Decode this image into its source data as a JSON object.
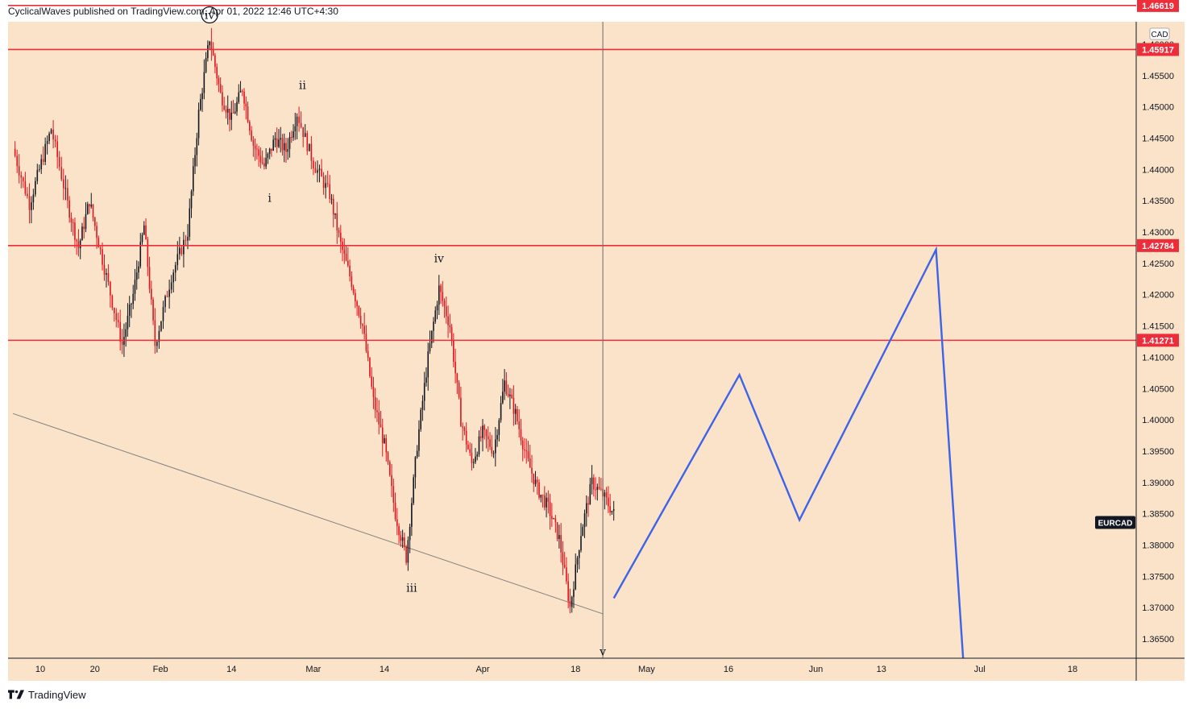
{
  "header": {
    "published": "CyclicalWaves published on TradingView.com, Apr 01, 2022 12:46 UTC+4:30"
  },
  "footer": {
    "brand": "TradingView",
    "logo_icon": "tradingview-logo-icon"
  },
  "chart_data": {
    "type": "candlestick",
    "symbol": "EURCAD",
    "currency": "CAD",
    "colors": {
      "background": "#fae3c8",
      "up": "#131722",
      "down": "#e0141e",
      "level": "#ee2d3b",
      "projection": "#3d63e8",
      "trendline": "#7f7f7f"
    },
    "y_axis": {
      "range": [
        1.3615,
        1.466
      ],
      "ticks": [
        "1.36500",
        "1.37000",
        "1.37500",
        "1.38000",
        "1.38500",
        "1.39000",
        "1.39500",
        "1.40000",
        "1.40500",
        "1.41000",
        "1.41500",
        "1.42000",
        "1.42500",
        "1.43000",
        "1.43500",
        "1.44000",
        "1.44500",
        "1.45000",
        "1.45500",
        "1.46000",
        "1.46500"
      ]
    },
    "x_axis": {
      "ticks": [
        {
          "label": "10",
          "date": "2022-01-10"
        },
        {
          "label": "20",
          "date": "2022-01-20"
        },
        {
          "label": "Feb",
          "date": "2022-02-01"
        },
        {
          "label": "14",
          "date": "2022-02-14"
        },
        {
          "label": "Mar",
          "date": "2022-03-01"
        },
        {
          "label": "14",
          "date": "2022-03-14"
        },
        {
          "label": "Apr",
          "date": "2022-04-01"
        },
        {
          "label": "18",
          "date": "2022-04-18"
        },
        {
          "label": "May",
          "date": "2022-05-01"
        },
        {
          "label": "16",
          "date": "2022-05-16"
        },
        {
          "label": "Jun",
          "date": "2022-06-01"
        },
        {
          "label": "13",
          "date": "2022-06-13"
        },
        {
          "label": "Jul",
          "date": "2022-07-01"
        },
        {
          "label": "18",
          "date": "2022-07-18"
        }
      ]
    },
    "levels": [
      {
        "value": 1.4662,
        "label": "1.46619"
      },
      {
        "value": 1.45917,
        "label": "1.45917"
      },
      {
        "value": 1.42784,
        "label": "1.42784"
      },
      {
        "value": 1.41271,
        "label": "1.41271"
      }
    ],
    "price_series": [
      {
        "date": "2022-01-05",
        "price": 1.4433
      },
      {
        "date": "2022-01-08",
        "price": 1.4345
      },
      {
        "date": "2022-01-12",
        "price": 1.4465
      },
      {
        "date": "2022-01-15",
        "price": 1.4345
      },
      {
        "date": "2022-01-17",
        "price": 1.4275
      },
      {
        "date": "2022-01-19",
        "price": 1.435
      },
      {
        "date": "2022-01-21",
        "price": 1.427
      },
      {
        "date": "2022-01-25",
        "price": 1.412
      },
      {
        "date": "2022-01-27",
        "price": 1.42
      },
      {
        "date": "2022-01-29",
        "price": 1.431
      },
      {
        "date": "2022-01-31",
        "price": 1.412
      },
      {
        "date": "2022-02-03",
        "price": 1.423
      },
      {
        "date": "2022-02-06",
        "price": 1.43
      },
      {
        "date": "2022-02-08",
        "price": 1.449
      },
      {
        "date": "2022-02-10",
        "price": 1.461
      },
      {
        "date": "2022-02-12",
        "price": 1.452
      },
      {
        "date": "2022-02-14",
        "price": 1.448
      },
      {
        "date": "2022-02-16",
        "price": 1.453
      },
      {
        "date": "2022-02-18",
        "price": 1.444
      },
      {
        "date": "2022-02-20",
        "price": 1.4405
      },
      {
        "date": "2022-02-22",
        "price": 1.445
      },
      {
        "date": "2022-02-24",
        "price": 1.443
      },
      {
        "date": "2022-02-26",
        "price": 1.449
      },
      {
        "date": "2022-03-01",
        "price": 1.441
      },
      {
        "date": "2022-03-04",
        "price": 1.436
      },
      {
        "date": "2022-03-06",
        "price": 1.428
      },
      {
        "date": "2022-03-08",
        "price": 1.422
      },
      {
        "date": "2022-03-10",
        "price": 1.415
      },
      {
        "date": "2022-03-12",
        "price": 1.403
      },
      {
        "date": "2022-03-14",
        "price": 1.396
      },
      {
        "date": "2022-03-16",
        "price": 1.385
      },
      {
        "date": "2022-03-18",
        "price": 1.378
      },
      {
        "date": "2022-03-20",
        "price": 1.396
      },
      {
        "date": "2022-03-22",
        "price": 1.41
      },
      {
        "date": "2022-03-24",
        "price": 1.421
      },
      {
        "date": "2022-03-26",
        "price": 1.415
      },
      {
        "date": "2022-03-28",
        "price": 1.4
      },
      {
        "date": "2022-03-30",
        "price": 1.393
      },
      {
        "date": "2022-04-01",
        "price": 1.398
      },
      {
        "date": "2022-04-03",
        "price": 1.395
      },
      {
        "date": "2022-04-05",
        "price": 1.406
      },
      {
        "date": "2022-04-07",
        "price": 1.401
      },
      {
        "date": "2022-04-09",
        "price": 1.394
      },
      {
        "date": "2022-04-11",
        "price": 1.389
      },
      {
        "date": "2022-04-13",
        "price": 1.386
      },
      {
        "date": "2022-04-15",
        "price": 1.381
      },
      {
        "date": "2022-04-17",
        "price": 1.37
      },
      {
        "date": "2022-04-19",
        "price": 1.382
      },
      {
        "date": "2022-04-21",
        "price": 1.39
      },
      {
        "date": "2022-04-23",
        "price": 1.388
      },
      {
        "date": "2022-04-25",
        "price": 1.385
      }
    ],
    "projection": [
      {
        "date": "2022-04-25",
        "price": 1.3715
      },
      {
        "date": "2022-05-18",
        "price": 1.4072
      },
      {
        "date": "2022-05-29",
        "price": 1.384
      },
      {
        "date": "2022-06-23",
        "price": 1.4272
      },
      {
        "date": "2022-06-28",
        "price": 1.3615
      }
    ],
    "trendline": [
      {
        "date": "2022-01-05",
        "price": 1.401
      },
      {
        "date": "2022-04-23",
        "price": 1.369
      }
    ],
    "vertical_marker_date": "2022-04-23",
    "wave_labels": [
      {
        "text": "iv",
        "circled": true,
        "date": "2022-02-10",
        "price": 1.4647
      },
      {
        "text": "ii",
        "date": "2022-02-27",
        "price": 1.4535
      },
      {
        "text": "i",
        "date": "2022-02-21",
        "price": 1.4355
      },
      {
        "text": "iv",
        "date": "2022-03-24",
        "price": 1.4258
      },
      {
        "text": "iii",
        "date": "2022-03-19",
        "price": 1.3732
      },
      {
        "text": "v",
        "date": "2022-04-23",
        "price": 1.363
      }
    ],
    "symbol_badge_price": 1.3836
  }
}
